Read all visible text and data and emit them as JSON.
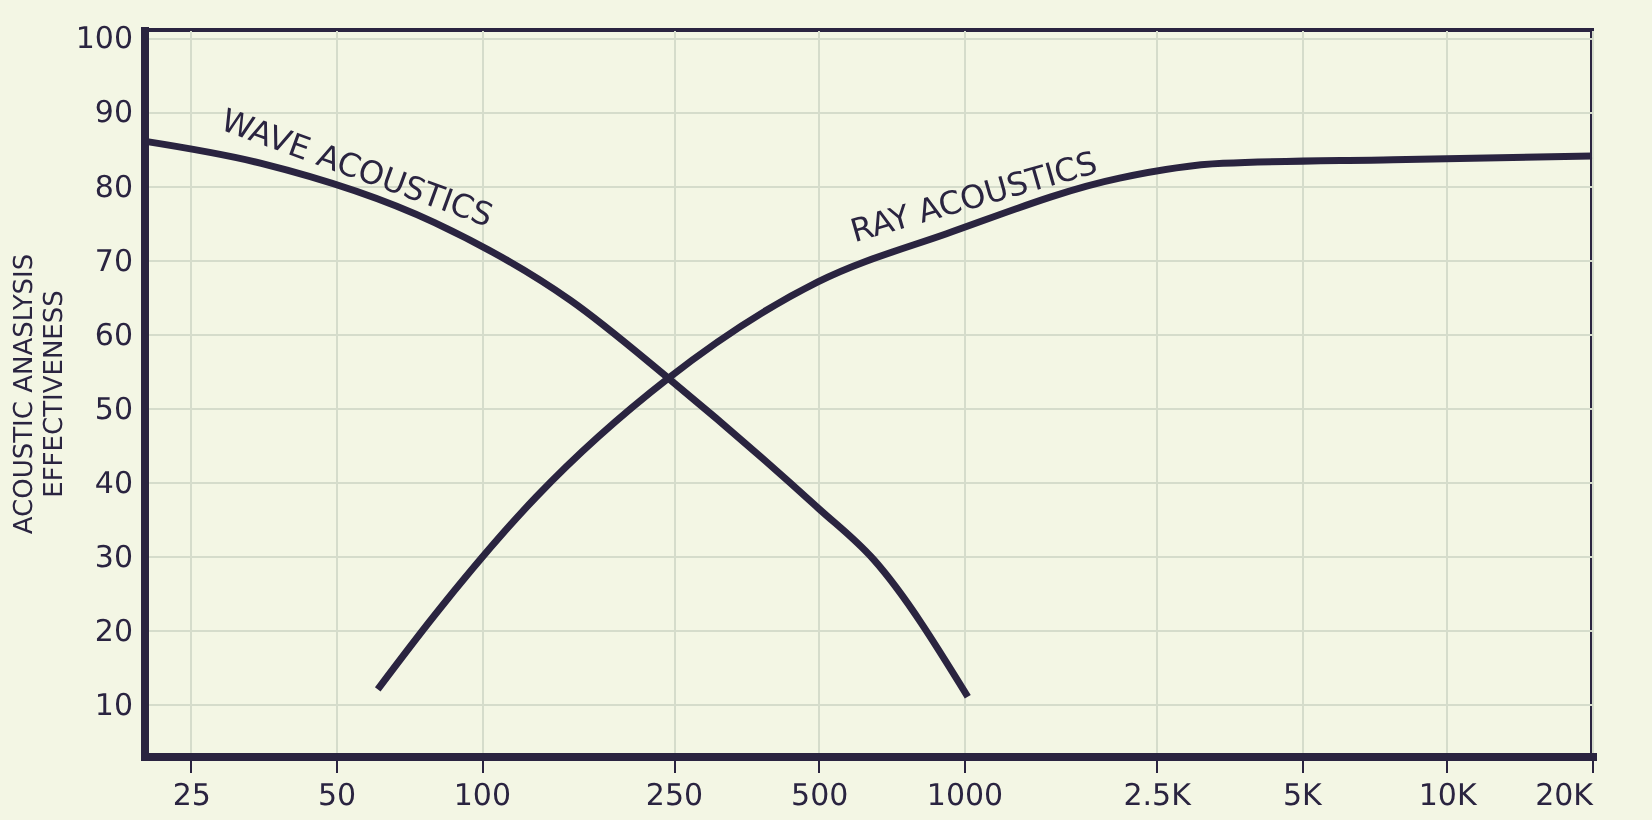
{
  "chart_data": {
    "type": "line",
    "ylabel": "ACOUSTIC ANASLYSIS\nEFFECTIVENESS",
    "xlim": [
      20,
      20000
    ],
    "ylim": [
      3,
      101
    ],
    "log": "x",
    "xticks": [
      25,
      50,
      100,
      250,
      500,
      1000,
      {
        "value": 2500,
        "label": "2.5K"
      },
      {
        "value": 5000,
        "label": "5K"
      },
      {
        "value": 10000,
        "label": "10K"
      },
      {
        "value": 20000,
        "label": "20K"
      }
    ],
    "yticks": [
      10,
      20,
      30,
      40,
      50,
      60,
      70,
      80,
      90,
      100
    ],
    "grid": true,
    "marker": "none",
    "line_style": "solid",
    "series": [
      {
        "name": "WAVE ACOUSTICS",
        "color": "#2a2440",
        "x": [
          20,
          35,
          80,
          153,
          244,
          498,
          650,
          1018
        ],
        "values": [
          86,
          83,
          75,
          64.5,
          54,
          36.5,
          29.5,
          11
        ]
      },
      {
        "name": "RAY ACOUSTICS",
        "color": "#2a2440",
        "x": [
          61,
          80,
          130,
          244,
          498,
          920,
          2100,
          3440,
          7740,
          20000
        ],
        "values": [
          12,
          22,
          38,
          54,
          67,
          73.5,
          81,
          83,
          83.5,
          84
        ]
      }
    ]
  }
}
